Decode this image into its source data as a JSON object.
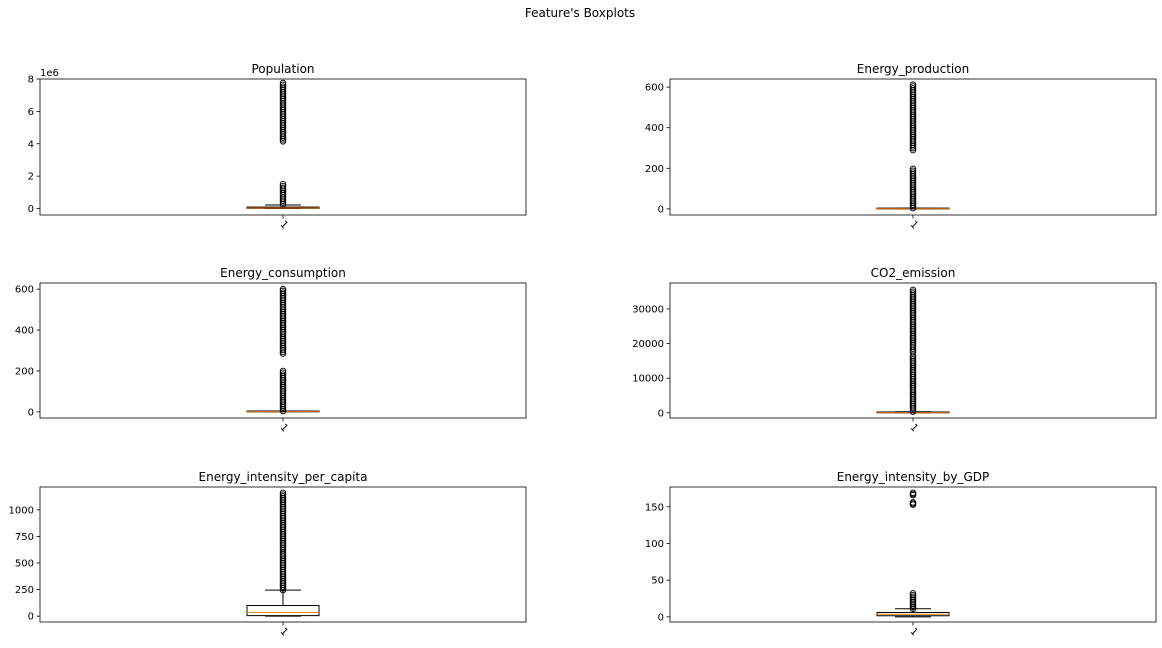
{
  "chart_data": {
    "type": "boxplot",
    "suptitle": "Feature's Boxplots",
    "subplots": [
      {
        "title": "Population",
        "category": "1",
        "offset_label": "1e6",
        "ylim": [
          -0.4,
          8.0
        ],
        "yticks": [
          0,
          2,
          4,
          6,
          8
        ],
        "box": {
          "q1": 0.01,
          "median": 0.03,
          "q3": 0.09,
          "whisker_low": 0.0,
          "whisker_high": 0.22
        },
        "outlier_ranges": [
          [
            0.25,
            1.5
          ],
          [
            4.15,
            7.75
          ]
        ]
      },
      {
        "title": "Energy_production",
        "category": "1",
        "offset_label": "",
        "ylim": [
          -30,
          640
        ],
        "yticks": [
          0,
          200,
          400,
          600
        ],
        "box": {
          "q1": 0,
          "median": 0.5,
          "q3": 1.5,
          "whisker_low": 0,
          "whisker_high": 3.5
        },
        "outlier_ranges": [
          [
            4,
            197
          ],
          [
            290,
            612
          ]
        ]
      },
      {
        "title": "Energy_consumption",
        "category": "1",
        "offset_label": "",
        "ylim": [
          -30,
          630
        ],
        "yticks": [
          0,
          200,
          400,
          600
        ],
        "box": {
          "q1": 0,
          "median": 0.5,
          "q3": 1.5,
          "whisker_low": 0,
          "whisker_high": 3.5
        },
        "outlier_ranges": [
          [
            4,
            200
          ],
          [
            285,
            600
          ]
        ]
      },
      {
        "title": "CO2_emission",
        "category": "1",
        "offset_label": "",
        "ylim": [
          -1500,
          37500
        ],
        "yticks": [
          0,
          10000,
          20000,
          30000
        ],
        "box": {
          "q1": 0,
          "median": 30,
          "q3": 120,
          "whisker_low": 0,
          "whisker_high": 300
        },
        "outlier_ranges": [
          [
            350,
            16500
          ],
          [
            17500,
            35500
          ]
        ]
      },
      {
        "title": "Energy_intensity_per_capita",
        "category": "1",
        "offset_label": "",
        "ylim": [
          -55,
          1215
        ],
        "yticks": [
          0,
          250,
          500,
          750,
          1000
        ],
        "box": {
          "q1": 5,
          "median": 35,
          "q3": 100,
          "whisker_low": 0,
          "whisker_high": 245
        },
        "outlier_ranges": [
          [
            245,
            600
          ],
          [
            620,
            1160
          ]
        ]
      },
      {
        "title": "Energy_intensity_by_GDP",
        "category": "1",
        "offset_label": "",
        "ylim": [
          -7,
          177
        ],
        "yticks": [
          0,
          50,
          100,
          150
        ],
        "box": {
          "q1": 1.5,
          "median": 3.5,
          "q3": 6,
          "whisker_low": 0,
          "whisker_high": 11
        },
        "outlier_ranges": [
          [
            11,
            32
          ],
          [
            153,
            156
          ],
          [
            166,
            169
          ]
        ]
      }
    ]
  }
}
